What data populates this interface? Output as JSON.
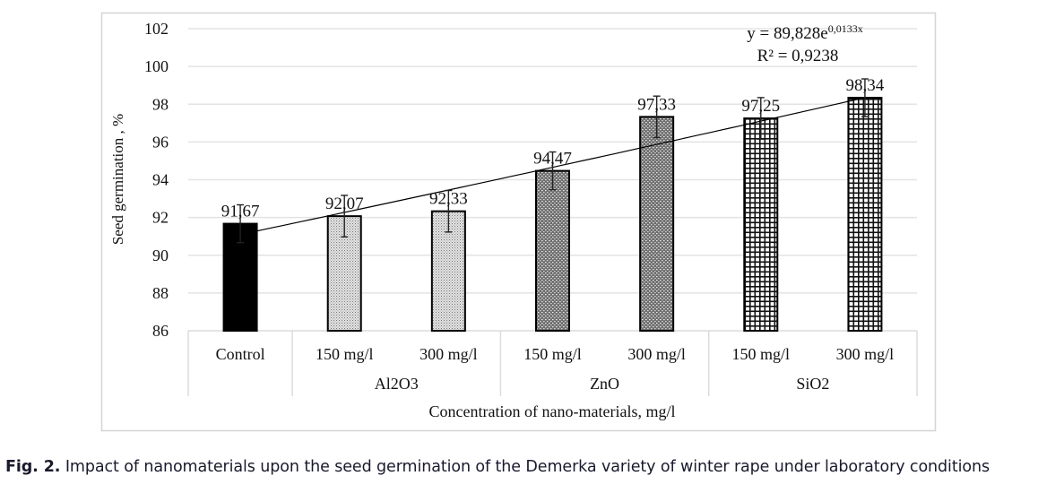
{
  "chart_data": {
    "type": "bar",
    "title": "",
    "xlabel": "Concentration of nano-materials, mg/l",
    "ylabel": "Seed germination , %",
    "ylim": [
      86,
      102
    ],
    "yticks": [
      86,
      88,
      90,
      92,
      94,
      96,
      98,
      100,
      102
    ],
    "ytick_labels": [
      "86",
      "88",
      "90",
      "92",
      "94",
      "96",
      "98",
      "100",
      "102"
    ],
    "grid": true,
    "categories": [
      "Control",
      "150 mg/l",
      "300 mg/l",
      "150 mg/l",
      "300 mg/l",
      "150 mg/l",
      "300 mg/l"
    ],
    "groups": [
      {
        "label": "",
        "start": 0,
        "count": 1
      },
      {
        "label": "Al2O3",
        "start": 1,
        "count": 2
      },
      {
        "label": "ZnO",
        "start": 3,
        "count": 2
      },
      {
        "label": "SiO2",
        "start": 5,
        "count": 2
      }
    ],
    "values": [
      91.67,
      92.07,
      92.33,
      94.47,
      97.33,
      97.25,
      98.34
    ],
    "data_labels": [
      "91,67",
      "92,07",
      "92,33",
      "94,47",
      "97,33",
      "97,25",
      "98,34"
    ],
    "error": [
      1.0,
      1.1,
      1.1,
      1.0,
      1.1,
      1.1,
      1.0
    ],
    "fills": [
      "solid-black",
      "fine-dots-light",
      "fine-dots-light",
      "dots-dark",
      "dots-dark",
      "grid",
      "grid"
    ],
    "trendline": {
      "type": "exponential",
      "a": 89.828,
      "b": 0.0133,
      "equation_label": "y = 89,828e",
      "equation_exponent": "0,0133x",
      "r2_label": "R² = 0,9238",
      "r2": 0.9238
    },
    "legend": "none"
  },
  "caption": {
    "prefix": "Fig. 2.",
    "text": " Impact of nanomaterials upon the seed germination of the Demerka variety of winter rape under laboratory conditions"
  }
}
